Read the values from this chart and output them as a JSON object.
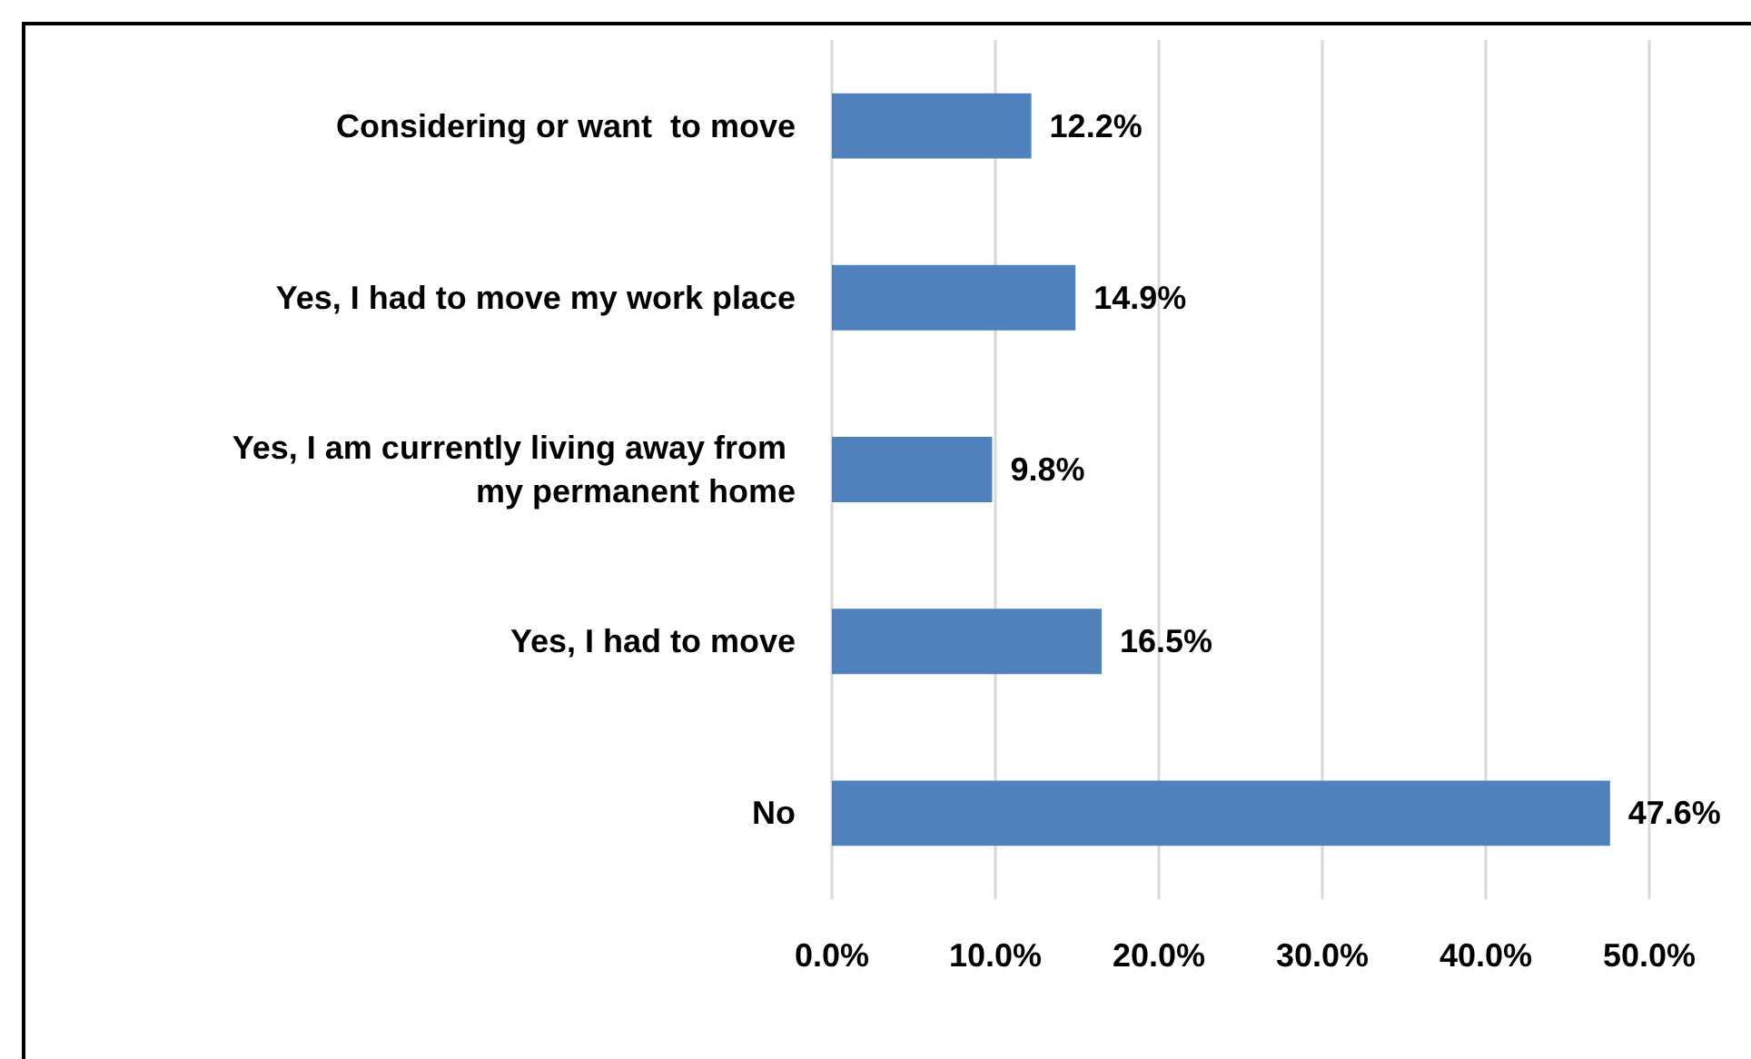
{
  "chart_data": {
    "type": "bar",
    "orientation": "horizontal",
    "categories": [
      "Considering or want  to move",
      "Yes, I had to move my work place",
      "Yes, I am currently living away from my permanent home",
      "Yes, I had to move",
      "No"
    ],
    "values": [
      12.2,
      14.9,
      9.8,
      16.5,
      47.6
    ],
    "value_labels": [
      "12.2%",
      "14.9%",
      "9.8%",
      "16.5%",
      "47.6%"
    ],
    "color": "#4f81bd",
    "xlim": [
      0,
      50
    ],
    "xticks": [
      {
        "value": 0,
        "label": "0.0%"
      },
      {
        "value": 10,
        "label": "10.0%"
      },
      {
        "value": 20,
        "label": "20.0%"
      },
      {
        "value": 30,
        "label": "30.0%"
      },
      {
        "value": 40,
        "label": "40.0%"
      },
      {
        "value": 50,
        "label": "50.0%"
      }
    ],
    "grid": "x"
  }
}
